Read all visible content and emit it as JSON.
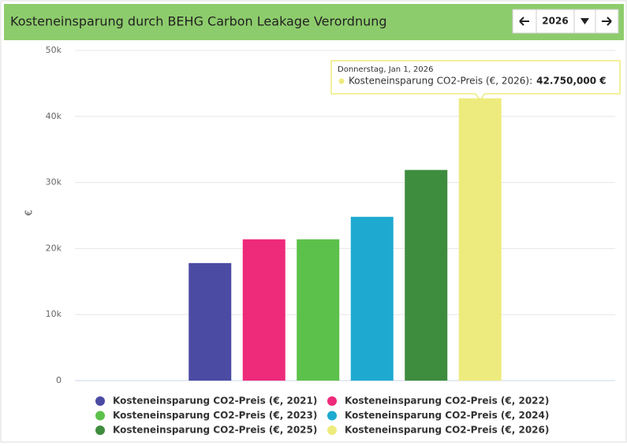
{
  "chart_data": {
    "type": "bar",
    "title": "Kosteneinsparung durch BEHG Carbon Leakage Verordnung",
    "control_year": "2026",
    "y_label": "€",
    "ylim": [
      0,
      50000
    ],
    "yticks": [
      {
        "value": 0,
        "label": "0"
      },
      {
        "value": 10000,
        "label": "10k"
      },
      {
        "value": 20000,
        "label": "20k"
      },
      {
        "value": 30000,
        "label": "30k"
      },
      {
        "value": 40000,
        "label": "40k"
      },
      {
        "value": 50000,
        "label": "50k"
      }
    ],
    "grid": true,
    "series": [
      {
        "name": "Kosteneinsparung CO2-Preis (€, 2021)",
        "color": "#4b4ba3",
        "values": [
          17800
        ]
      },
      {
        "name": "Kosteneinsparung CO2-Preis (€, 2022)",
        "color": "#ee2a7b",
        "values": [
          21400
        ]
      },
      {
        "name": "Kosteneinsparung CO2-Preis (€, 2023)",
        "color": "#5cc14a",
        "values": [
          21400
        ]
      },
      {
        "name": "Kosteneinsparung CO2-Preis (€, 2024)",
        "color": "#1eaad0",
        "values": [
          24800
        ]
      },
      {
        "name": "Kosteneinsparung CO2-Preis (€, 2025)",
        "color": "#3e8c3e",
        "values": [
          31900
        ]
      },
      {
        "name": "Kosteneinsparung CO2-Preis (€, 2026)",
        "color": "#eeeb7e",
        "values": [
          42750
        ]
      }
    ],
    "tooltip": {
      "title": "Donnerstag, Jan 1, 2026",
      "label": "Kosteneinsparung CO2-Preis (€, 2026):",
      "value_label": "42.750,000 €"
    }
  }
}
